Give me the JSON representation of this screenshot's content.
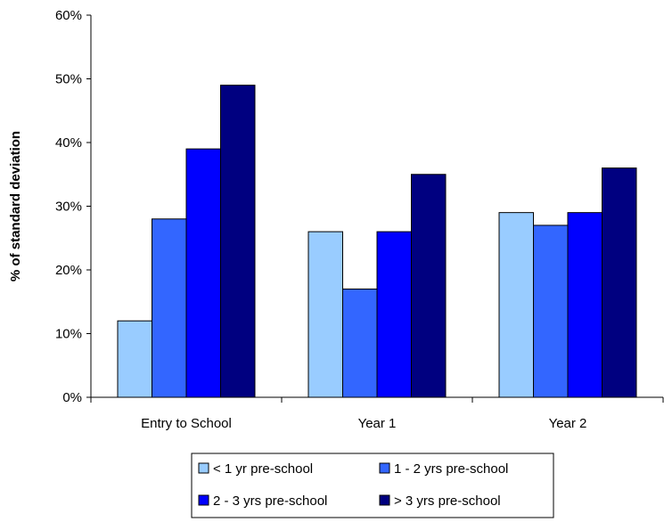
{
  "chart_data": {
    "type": "bar",
    "title": "",
    "xlabel": "",
    "ylabel": "% of standard deviation",
    "ylim": [
      0,
      60
    ],
    "yticks": [
      0,
      10,
      20,
      30,
      40,
      50,
      60
    ],
    "ytick_labels": [
      "0%",
      "10%",
      "20%",
      "30%",
      "40%",
      "50%",
      "60%"
    ],
    "categories": [
      "Entry to School",
      "Year 1",
      "Year 2"
    ],
    "series": [
      {
        "name": "< 1 yr pre-school",
        "color": "#99ccff",
        "values": [
          12,
          26,
          29
        ]
      },
      {
        "name": "1 - 2 yrs pre-school",
        "color": "#3366ff",
        "values": [
          28,
          17,
          27
        ]
      },
      {
        "name": "2 - 3 yrs pre-school",
        "color": "#0000ff",
        "values": [
          39,
          26,
          29
        ]
      },
      {
        "name": "> 3 yrs pre-school",
        "color": "#000080",
        "values": [
          49,
          35,
          36
        ]
      }
    ],
    "grid": false,
    "legend_position": "bottom"
  }
}
